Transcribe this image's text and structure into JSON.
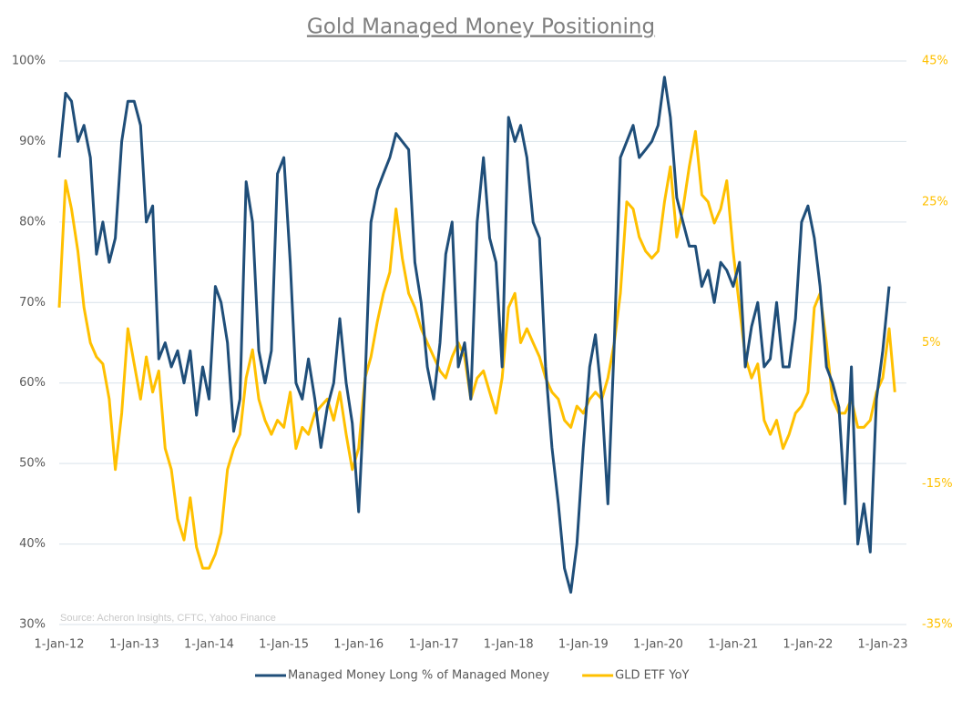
{
  "chart_data": {
    "type": "line",
    "title": "Gold Managed Money Positioning",
    "annotation": "Source: Acheron Insights, CFTC, Yahoo Finance",
    "x": [
      "2012-01-01",
      "2012-02-01",
      "2012-03-01",
      "2012-04-01",
      "2012-05-01",
      "2012-06-01",
      "2012-07-01",
      "2012-08-01",
      "2012-09-01",
      "2012-10-01",
      "2012-11-01",
      "2012-12-01",
      "2013-01-01",
      "2013-02-01",
      "2013-03-01",
      "2013-04-01",
      "2013-05-01",
      "2013-06-01",
      "2013-07-01",
      "2013-08-01",
      "2013-09-01",
      "2013-10-01",
      "2013-11-01",
      "2013-12-01",
      "2014-01-01",
      "2014-02-01",
      "2014-03-01",
      "2014-04-01",
      "2014-05-01",
      "2014-06-01",
      "2014-07-01",
      "2014-08-01",
      "2014-09-01",
      "2014-10-01",
      "2014-11-01",
      "2014-12-01",
      "2015-01-01",
      "2015-02-01",
      "2015-03-01",
      "2015-04-01",
      "2015-05-01",
      "2015-06-01",
      "2015-07-01",
      "2015-08-01",
      "2015-09-01",
      "2015-10-01",
      "2015-11-01",
      "2015-12-01",
      "2016-01-01",
      "2016-02-01",
      "2016-03-01",
      "2016-04-01",
      "2016-05-01",
      "2016-06-01",
      "2016-07-01",
      "2016-08-01",
      "2016-09-01",
      "2016-10-01",
      "2016-11-01",
      "2016-12-01",
      "2017-01-01",
      "2017-02-01",
      "2017-03-01",
      "2017-04-01",
      "2017-05-01",
      "2017-06-01",
      "2017-07-01",
      "2017-08-01",
      "2017-09-01",
      "2017-10-01",
      "2017-11-01",
      "2017-12-01",
      "2018-01-01",
      "2018-02-01",
      "2018-03-01",
      "2018-04-01",
      "2018-05-01",
      "2018-06-01",
      "2018-07-01",
      "2018-08-01",
      "2018-09-01",
      "2018-10-01",
      "2018-11-01",
      "2018-12-01",
      "2019-01-01",
      "2019-02-01",
      "2019-03-01",
      "2019-04-01",
      "2019-05-01",
      "2019-06-01",
      "2019-07-01",
      "2019-08-01",
      "2019-09-01",
      "2019-10-01",
      "2019-11-01",
      "2019-12-01",
      "2020-01-01",
      "2020-02-01",
      "2020-03-01",
      "2020-04-01",
      "2020-05-01",
      "2020-06-01",
      "2020-07-01",
      "2020-08-01",
      "2020-09-01",
      "2020-10-01",
      "2020-11-01",
      "2020-12-01",
      "2021-01-01",
      "2021-02-01",
      "2021-03-01",
      "2021-04-01",
      "2021-05-01",
      "2021-06-01",
      "2021-07-01",
      "2021-08-01",
      "2021-09-01",
      "2021-10-01",
      "2021-11-01",
      "2021-12-01",
      "2022-01-01",
      "2022-02-01",
      "2022-03-01",
      "2022-04-01",
      "2022-05-01",
      "2022-06-01",
      "2022-07-01",
      "2022-08-01",
      "2022-09-01",
      "2022-10-01",
      "2022-11-01",
      "2022-12-01",
      "2023-01-01",
      "2023-02-01",
      "2023-03-01"
    ],
    "series": [
      {
        "name": "Managed Money Long % of Managed Money",
        "color": "#1f4e79",
        "values": [
          88,
          96,
          95,
          90,
          92,
          88,
          76,
          80,
          75,
          78,
          90,
          95,
          95,
          92,
          80,
          82,
          63,
          65,
          62,
          64,
          60,
          64,
          56,
          62,
          58,
          72,
          70,
          65,
          54,
          58,
          85,
          80,
          64,
          60,
          64,
          86,
          88,
          75,
          60,
          58,
          63,
          58,
          52,
          57,
          60,
          68,
          60,
          55,
          44,
          60,
          80,
          84,
          86,
          88,
          91,
          90,
          89,
          75,
          70,
          62,
          58,
          65,
          76,
          80,
          62,
          65,
          58,
          80,
          88,
          78,
          75,
          62,
          93,
          90,
          92,
          88,
          80,
          78,
          62,
          52,
          45,
          37,
          34,
          40,
          52,
          62,
          66,
          58,
          45,
          65,
          88,
          90,
          92,
          88,
          89,
          90,
          92,
          98,
          93,
          83,
          80,
          77,
          77,
          72,
          74,
          70,
          75,
          74,
          72,
          75,
          62,
          67,
          70,
          62,
          63,
          70,
          62,
          62,
          68,
          80,
          82,
          78,
          72,
          62,
          60,
          57,
          45,
          62,
          40,
          45,
          39,
          58,
          64,
          72,
          null
        ]
      },
      {
        "name": "GLD ETF YoY",
        "color": "#ffc000",
        "axis": "y2",
        "values": [
          10,
          28,
          24,
          18,
          10,
          5,
          3,
          2,
          -3,
          -13,
          -5,
          7,
          2,
          -3,
          3,
          -2,
          1,
          -10,
          -13,
          -20,
          -23,
          -17,
          -24,
          -27,
          -27,
          -25,
          -22,
          -13,
          -10,
          -8,
          0,
          4,
          -3,
          -6,
          -8,
          -6,
          -7,
          -2,
          -10,
          -7,
          -8,
          -5,
          -4,
          -3,
          -6,
          -2,
          -8,
          -13,
          -10,
          0,
          3,
          8,
          12,
          15,
          24,
          17,
          12,
          10,
          7,
          5,
          3,
          1,
          0,
          3,
          5,
          3,
          -3,
          0,
          1,
          -2,
          -5,
          0,
          10,
          12,
          5,
          7,
          5,
          3,
          0,
          -2,
          -3,
          -6,
          -7,
          -4,
          -5,
          -3,
          -2,
          -3,
          0,
          5,
          12,
          25,
          24,
          20,
          18,
          17,
          18,
          25,
          30,
          20,
          24,
          30,
          35,
          26,
          25,
          22,
          24,
          28,
          18,
          10,
          3,
          0,
          2,
          -6,
          -8,
          -6,
          -10,
          -8,
          -5,
          -4,
          -2,
          10,
          12,
          5,
          -3,
          -5,
          -5,
          -3,
          -7,
          -7,
          -6,
          -2,
          0,
          7,
          -2
        ]
      }
    ],
    "xlim": [
      "2012-01-01",
      "2023-06-01"
    ],
    "xticks": [
      {
        "value": "2012-01-01",
        "label": "1-Jan-12"
      },
      {
        "value": "2013-01-01",
        "label": "1-Jan-13"
      },
      {
        "value": "2014-01-01",
        "label": "1-Jan-14"
      },
      {
        "value": "2015-01-01",
        "label": "1-Jan-15"
      },
      {
        "value": "2016-01-01",
        "label": "1-Jan-16"
      },
      {
        "value": "2017-01-01",
        "label": "1-Jan-17"
      },
      {
        "value": "2018-01-01",
        "label": "1-Jan-18"
      },
      {
        "value": "2019-01-01",
        "label": "1-Jan-19"
      },
      {
        "value": "2020-01-01",
        "label": "1-Jan-20"
      },
      {
        "value": "2021-01-01",
        "label": "1-Jan-21"
      },
      {
        "value": "2022-01-01",
        "label": "1-Jan-22"
      },
      {
        "value": "2023-01-01",
        "label": "1-Jan-23"
      }
    ],
    "ylim": [
      30,
      100
    ],
    "yticks": [
      {
        "value": 30,
        "label": "30%"
      },
      {
        "value": 40,
        "label": "40%"
      },
      {
        "value": 50,
        "label": "50%"
      },
      {
        "value": 60,
        "label": "60%"
      },
      {
        "value": 70,
        "label": "70%"
      },
      {
        "value": 80,
        "label": "80%"
      },
      {
        "value": 90,
        "label": "90%"
      },
      {
        "value": 100,
        "label": "100%"
      }
    ],
    "y2lim": [
      -35,
      45
    ],
    "y2ticks": [
      {
        "value": -35,
        "label": "-35%"
      },
      {
        "value": -15,
        "label": "-15%"
      },
      {
        "value": 5,
        "label": "5%"
      },
      {
        "value": 25,
        "label": "25%"
      },
      {
        "value": 45,
        "label": "45%"
      }
    ],
    "grid": true,
    "legend": "bottom"
  }
}
